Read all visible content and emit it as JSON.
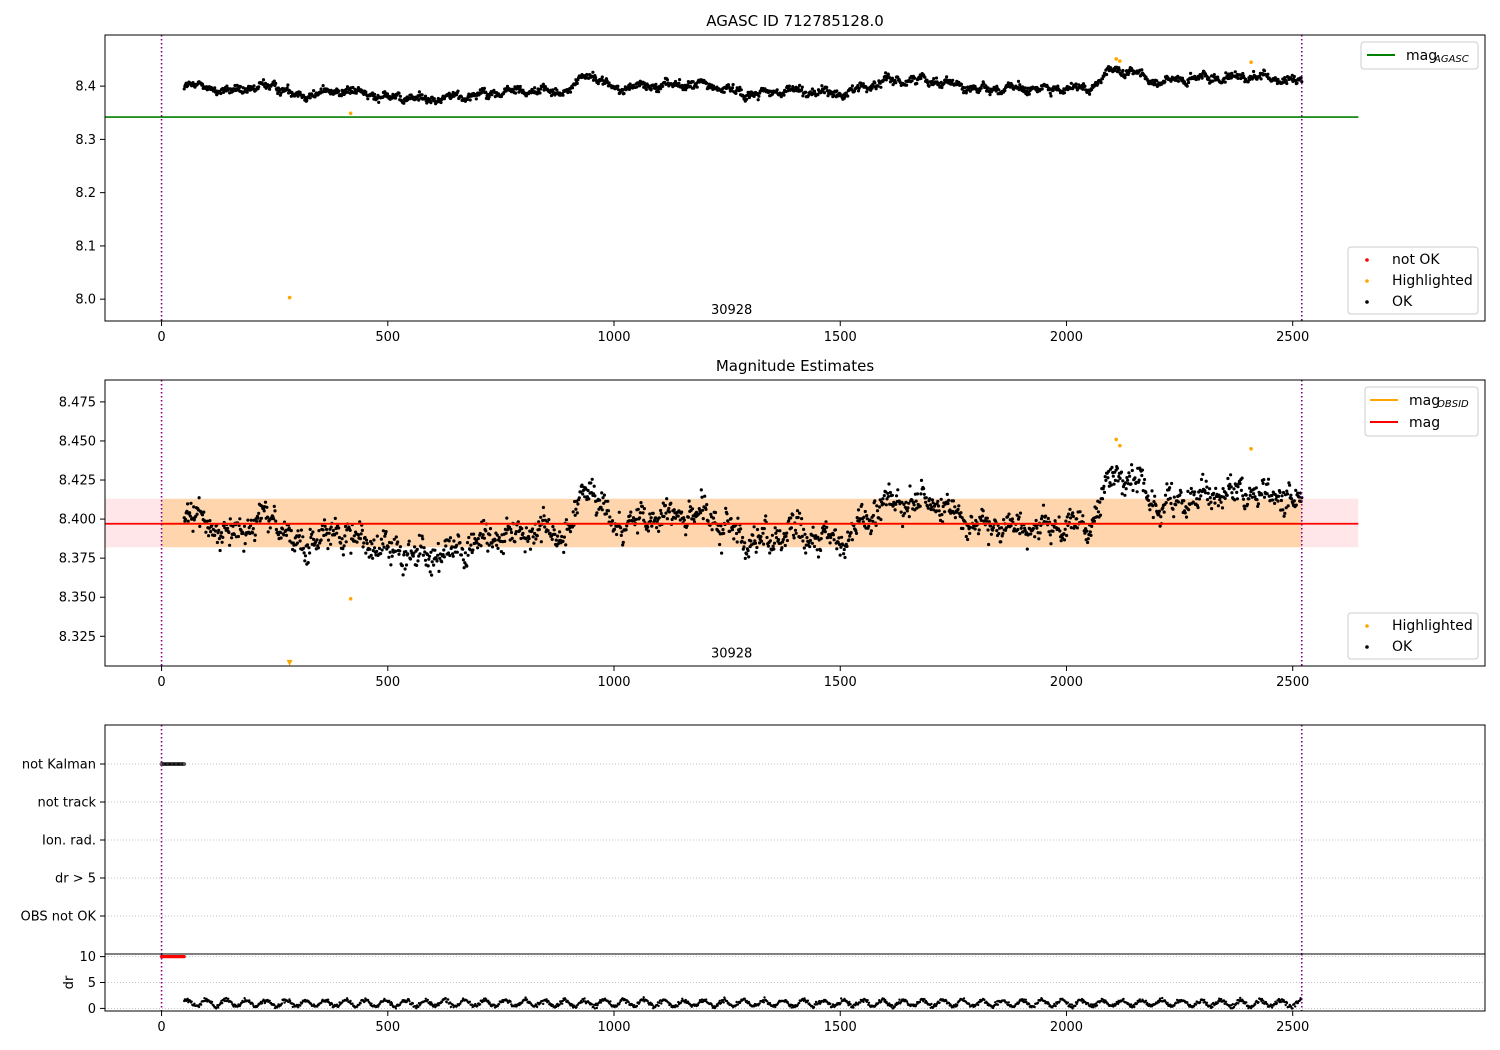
{
  "chart_data": [
    {
      "type": "scatter",
      "title": "AGASC ID 712785128.0",
      "xlim": [
        -125,
        2925
      ],
      "ylim": [
        7.959,
        8.496
      ],
      "xticks": [
        0,
        500,
        1000,
        1500,
        2000,
        2500
      ],
      "xtick_labels": [
        "0",
        "500",
        "1000",
        "1500",
        "2000",
        "2500"
      ],
      "yticks": [
        8.0,
        8.1,
        8.2,
        8.3,
        8.4
      ],
      "ytick_labels": [
        "8.0",
        "8.1",
        "8.2",
        "8.3",
        "8.4"
      ],
      "grid": false,
      "vlines": [
        0,
        2520
      ],
      "annotation": {
        "text": "30928",
        "x": 1260,
        "y": 7.98
      },
      "mag_agasc": 8.342,
      "mag_agasc_xrange": [
        -125,
        2645
      ],
      "series": [
        {
          "name": "not OK",
          "color": "#ff0000",
          "points": []
        },
        {
          "name": "Highlighted",
          "color": "#ffa500",
          "points": [
            [
              283,
              8.003
            ],
            [
              418,
              8.349
            ],
            [
              2110,
              8.451
            ],
            [
              2118,
              8.447
            ],
            [
              2408,
              8.445
            ]
          ]
        },
        {
          "name": "OK",
          "color": "#000000",
          "trend": {
            "x_start": 50,
            "x_end": 2520,
            "x": [
              50,
              150,
              250,
              300,
              400,
              500,
              600,
              700,
              800,
              900,
              940,
              1000,
              1100,
              1200,
              1300,
              1400,
              1500,
              1600,
              1700,
              1800,
              1900,
              2000,
              2050,
              2100,
              2150,
              2200,
              2300,
              2400,
              2520
            ],
            "y": [
              8.405,
              8.39,
              8.402,
              8.382,
              8.392,
              8.38,
              8.375,
              8.385,
              8.392,
              8.39,
              8.425,
              8.395,
              8.402,
              8.403,
              8.385,
              8.392,
              8.385,
              8.41,
              8.412,
              8.395,
              8.395,
              8.395,
              8.395,
              8.43,
              8.425,
              8.408,
              8.415,
              8.418,
              8.41
            ],
            "spread": 0.006,
            "count": 1650
          }
        }
      ],
      "legend_upper": {
        "placement": "upper right",
        "entries": [
          {
            "main": "mag",
            "sub": "AGASC",
            "color": "#008000"
          }
        ]
      },
      "legend_lower": {
        "placement": "lower right",
        "entries": [
          "not OK",
          "Highlighted",
          "OK"
        ]
      }
    },
    {
      "type": "scatter",
      "title": "Magnitude Estimates",
      "xlim": [
        -125,
        2925
      ],
      "ylim": [
        8.306,
        8.489
      ],
      "xticks": [
        0,
        500,
        1000,
        1500,
        2000,
        2500
      ],
      "xtick_labels": [
        "0",
        "500",
        "1000",
        "1500",
        "2000",
        "2500"
      ],
      "yticks": [
        8.325,
        8.35,
        8.375,
        8.4,
        8.425,
        8.45,
        8.475
      ],
      "ytick_labels": [
        "8.325",
        "8.350",
        "8.375",
        "8.400",
        "8.425",
        "8.450",
        "8.475"
      ],
      "grid": false,
      "vlines": [
        0,
        2520
      ],
      "annotation": {
        "text": "30928",
        "x": 1260,
        "y": 8.314
      },
      "mag": 8.397,
      "mag_band": [
        8.382,
        8.413
      ],
      "mag_obsid": 8.397,
      "mag_obsid_band": [
        8.382,
        8.413
      ],
      "lines_xrange": [
        -125,
        2645
      ],
      "series": [
        {
          "name": "Highlighted",
          "color": "#ffa500",
          "points": [
            [
              283,
              8.308
            ],
            [
              418,
              8.349
            ],
            [
              2110,
              8.451
            ],
            [
              2118,
              8.447
            ],
            [
              2408,
              8.445
            ]
          ]
        },
        {
          "name": "OK",
          "color": "#000000",
          "trend": {
            "x_start": 50,
            "x_end": 2520,
            "x": [
              50,
              150,
              250,
              300,
              400,
              500,
              600,
              700,
              800,
              900,
              940,
              1000,
              1100,
              1200,
              1300,
              1400,
              1500,
              1600,
              1700,
              1800,
              1900,
              2000,
              2050,
              2100,
              2150,
              2200,
              2300,
              2400,
              2520
            ],
            "y": [
              8.405,
              8.39,
              8.402,
              8.382,
              8.392,
              8.38,
              8.375,
              8.385,
              8.392,
              8.39,
              8.425,
              8.395,
              8.402,
              8.403,
              8.385,
              8.392,
              8.385,
              8.41,
              8.412,
              8.395,
              8.395,
              8.395,
              8.395,
              8.43,
              8.425,
              8.408,
              8.415,
              8.418,
              8.41
            ],
            "spread": 0.007,
            "count": 1650
          }
        }
      ],
      "legend_upper": {
        "placement": "upper right",
        "entries": [
          {
            "main": "mag",
            "sub": "OBSID",
            "color": "#ffa500"
          },
          {
            "main": "mag",
            "sub": "",
            "color": "#ff0000"
          }
        ]
      },
      "legend_lower": {
        "placement": "lower right",
        "entries": [
          "Highlighted",
          "OK"
        ]
      }
    },
    {
      "type": "scatter",
      "title": "",
      "xlim": [
        -125,
        2925
      ],
      "categories": [
        "not Kalman",
        "not track",
        "Ion. rad.",
        "dr > 5",
        "OBS not OK"
      ],
      "vlines": [
        0,
        2520
      ],
      "flags": [
        {
          "category": "not Kalman",
          "x_range": [
            0,
            50
          ]
        }
      ],
      "grid": true
    },
    {
      "type": "scatter",
      "title": "",
      "xlim": [
        -125,
        2925
      ],
      "ylim": [
        -0.5,
        10.5
      ],
      "ylabel": "dr",
      "xticks": [
        0,
        500,
        1000,
        1500,
        2000,
        2500
      ],
      "xtick_labels": [
        "0",
        "500",
        "1000",
        "1500",
        "2000",
        "2500"
      ],
      "yticks": [
        0,
        5,
        10
      ],
      "ytick_labels": [
        "0",
        "5",
        "10"
      ],
      "grid": true,
      "vlines": [
        0,
        2520
      ],
      "series": [
        {
          "name": "dr",
          "color": "#000000",
          "x_range": [
            50,
            2520
          ],
          "typical": 1.0,
          "max": 2.6
        },
        {
          "name": "dr clipped",
          "color": "#ff0000",
          "x_range": [
            0,
            50
          ],
          "value": 10
        }
      ]
    }
  ]
}
